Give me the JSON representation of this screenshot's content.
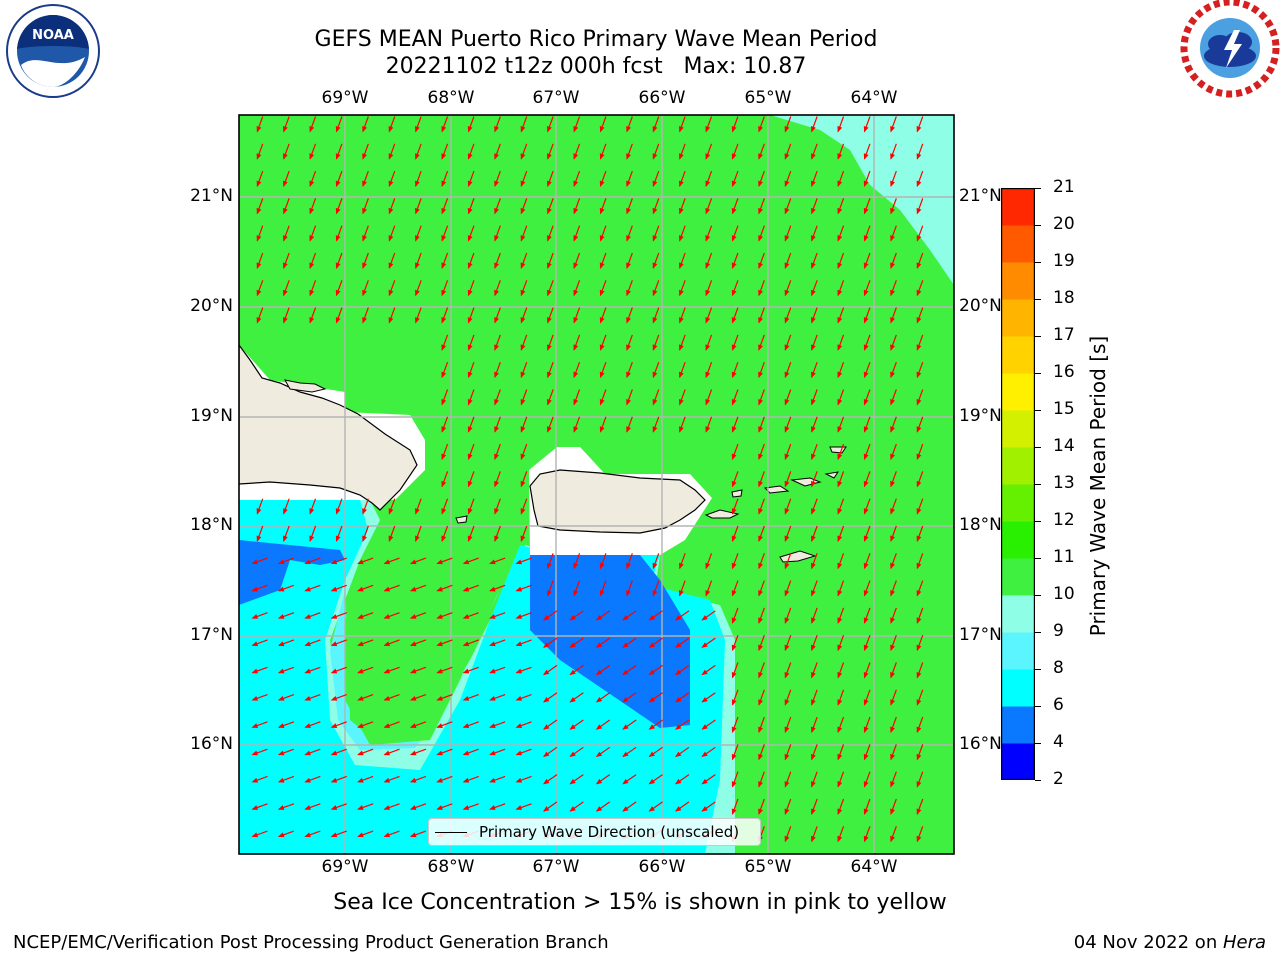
{
  "title": {
    "line1": "GEFS MEAN Puerto Rico Primary Wave Mean Period",
    "line2": "20221102 t12z 000h fcst   Max: 10.87"
  },
  "logos": {
    "left": {
      "name": "NOAA",
      "ring_text": "NATIONAL OCEANIC AND ATMOSPHERIC ADMINISTRATION · U.S. DEPARTMENT OF COMMERCE"
    },
    "right": {
      "name": "NATIONAL WEATHER SERVICE"
    }
  },
  "map": {
    "lon_labels": [
      "69°W",
      "68°W",
      "67°W",
      "66°W",
      "65°W",
      "64°W"
    ],
    "lat_labels": [
      "21°N",
      "20°N",
      "19°N",
      "18°N",
      "17°N",
      "16°N"
    ],
    "legend_label": "Primary Wave Direction (unscaled)",
    "grid": true,
    "colors": {
      "land": "#efebde",
      "arrow": "#ff0000",
      "grid": "#b4b4b4",
      "coastline": "#000000"
    }
  },
  "colorbar": {
    "label": "Primary Wave Mean Period [s]",
    "ticks": [
      "2",
      "4",
      "6",
      "8",
      "9",
      "10",
      "11",
      "12",
      "13",
      "14",
      "15",
      "16",
      "17",
      "18",
      "19",
      "20",
      "21"
    ],
    "colors": [
      "#0000ff",
      "#0a78ff",
      "#00ffff",
      "#5af5ff",
      "#8effe6",
      "#40f040",
      "#28f000",
      "#64f000",
      "#a0f000",
      "#d2f000",
      "#fff000",
      "#ffd200",
      "#ffb400",
      "#ff8c00",
      "#ff5a00",
      "#ff2800",
      "#ff0000"
    ]
  },
  "note": "Sea Ice Concentration > 15% is shown in pink to yellow",
  "footer": {
    "left": "NCEP/EMC/Verification Post Processing Product Generation Branch",
    "right_date": "04 Nov 2022 on ",
    "right_host": "Hera"
  }
}
